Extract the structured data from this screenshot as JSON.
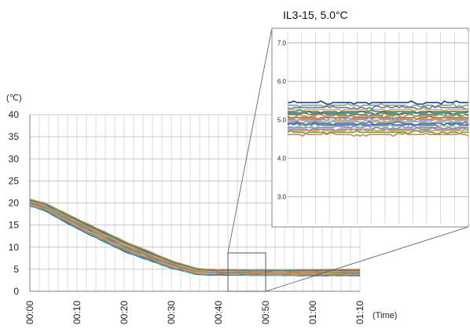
{
  "chart_data": [
    {
      "type": "line",
      "title": "",
      "xlabel": "(Time)",
      "ylabel": "(℃)",
      "x_tick_labels": [
        "00:00",
        "00:10",
        "00:20",
        "00:30",
        "00:40",
        "00:50",
        "01:00",
        "01:10"
      ],
      "y_tick_labels": [
        "0",
        "5",
        "10",
        "15",
        "20",
        "25",
        "30",
        "35",
        "40"
      ],
      "xlim_minutes": [
        0,
        70
      ],
      "ylim": [
        0,
        40
      ],
      "grid": true,
      "series_count": 30,
      "envelope": [
        {
          "t": 0,
          "low": 19.3,
          "high": 20.9
        },
        {
          "t": 3,
          "low": 18.3,
          "high": 20.1
        },
        {
          "t": 10,
          "low": 14.2,
          "high": 16.5
        },
        {
          "t": 20,
          "low": 9.0,
          "high": 11.4
        },
        {
          "t": 30,
          "low": 5.2,
          "high": 7.0
        },
        {
          "t": 35,
          "low": 3.9,
          "high": 5.3
        },
        {
          "t": 38,
          "low": 3.7,
          "high": 5.0
        },
        {
          "t": 50,
          "low": 3.6,
          "high": 4.9
        },
        {
          "t": 70,
          "low": 3.5,
          "high": 5.0
        }
      ],
      "zoom_region": {
        "t_start": 42,
        "t_end": 50,
        "y_low": 0,
        "y_high": 8.7
      }
    },
    {
      "type": "line",
      "title": "IL3-15, 5.0°C",
      "y_tick_labels": [
        "3.0",
        "4.0",
        "5.0",
        "6.0",
        "7.0"
      ],
      "ylim": [
        2.3,
        7.3
      ],
      "grid": true,
      "series_levels": [
        5.45,
        5.38,
        5.32,
        5.27,
        5.22,
        5.18,
        5.14,
        5.1,
        5.06,
        5.02,
        4.98,
        4.95,
        4.91,
        4.87,
        4.83,
        4.8,
        4.76,
        4.72,
        4.68,
        4.62
      ]
    }
  ],
  "colors": {
    "series": [
      "#1f3f8f",
      "#2d6fc0",
      "#3d8fd6",
      "#6a9fd8",
      "#8fb7e0",
      "#3e7b3e",
      "#5fa04e",
      "#7fb26a",
      "#a3c58a",
      "#e07b2f",
      "#ef9a52",
      "#f2b37a",
      "#c0504d",
      "#d97e6a",
      "#8064a2",
      "#9f86c0",
      "#4bacc6",
      "#7ec3d6",
      "#9c6b2f",
      "#b08840",
      "#f0c04a",
      "#bfbf3f",
      "#888888",
      "#a5a5a5",
      "#666699",
      "#3a5f8a",
      "#c46a2a",
      "#6d9b3c",
      "#2f8f8f",
      "#d4a03a"
    ],
    "grid": "#c8c8c8",
    "frame": "#7f7f7f",
    "connector": "#555555"
  }
}
